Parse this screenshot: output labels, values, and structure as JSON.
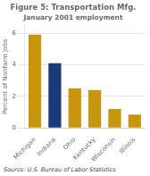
{
  "chart_data": {
    "type": "bar",
    "title": "Figure 5: Transportation Mfg.",
    "subtitle": "January 2001 employment",
    "ylabel": "Percent of Nonfarm Jobs",
    "source": "Source: U.S. Bureau of Labor Statistics",
    "categories": [
      "Michigan",
      "Indiana",
      "Ohio",
      "Kentucky",
      "Wisconsin",
      "Illinois"
    ],
    "values": [
      5.9,
      4.1,
      2.5,
      2.4,
      1.2,
      0.85
    ],
    "colors": [
      "#C8960C",
      "#1A3A7A",
      "#C8960C",
      "#C8960C",
      "#C8960C",
      "#C8960C"
    ],
    "ylim": [
      0,
      6.5
    ],
    "yticks": [
      0,
      2,
      4,
      6
    ],
    "grid": true
  }
}
